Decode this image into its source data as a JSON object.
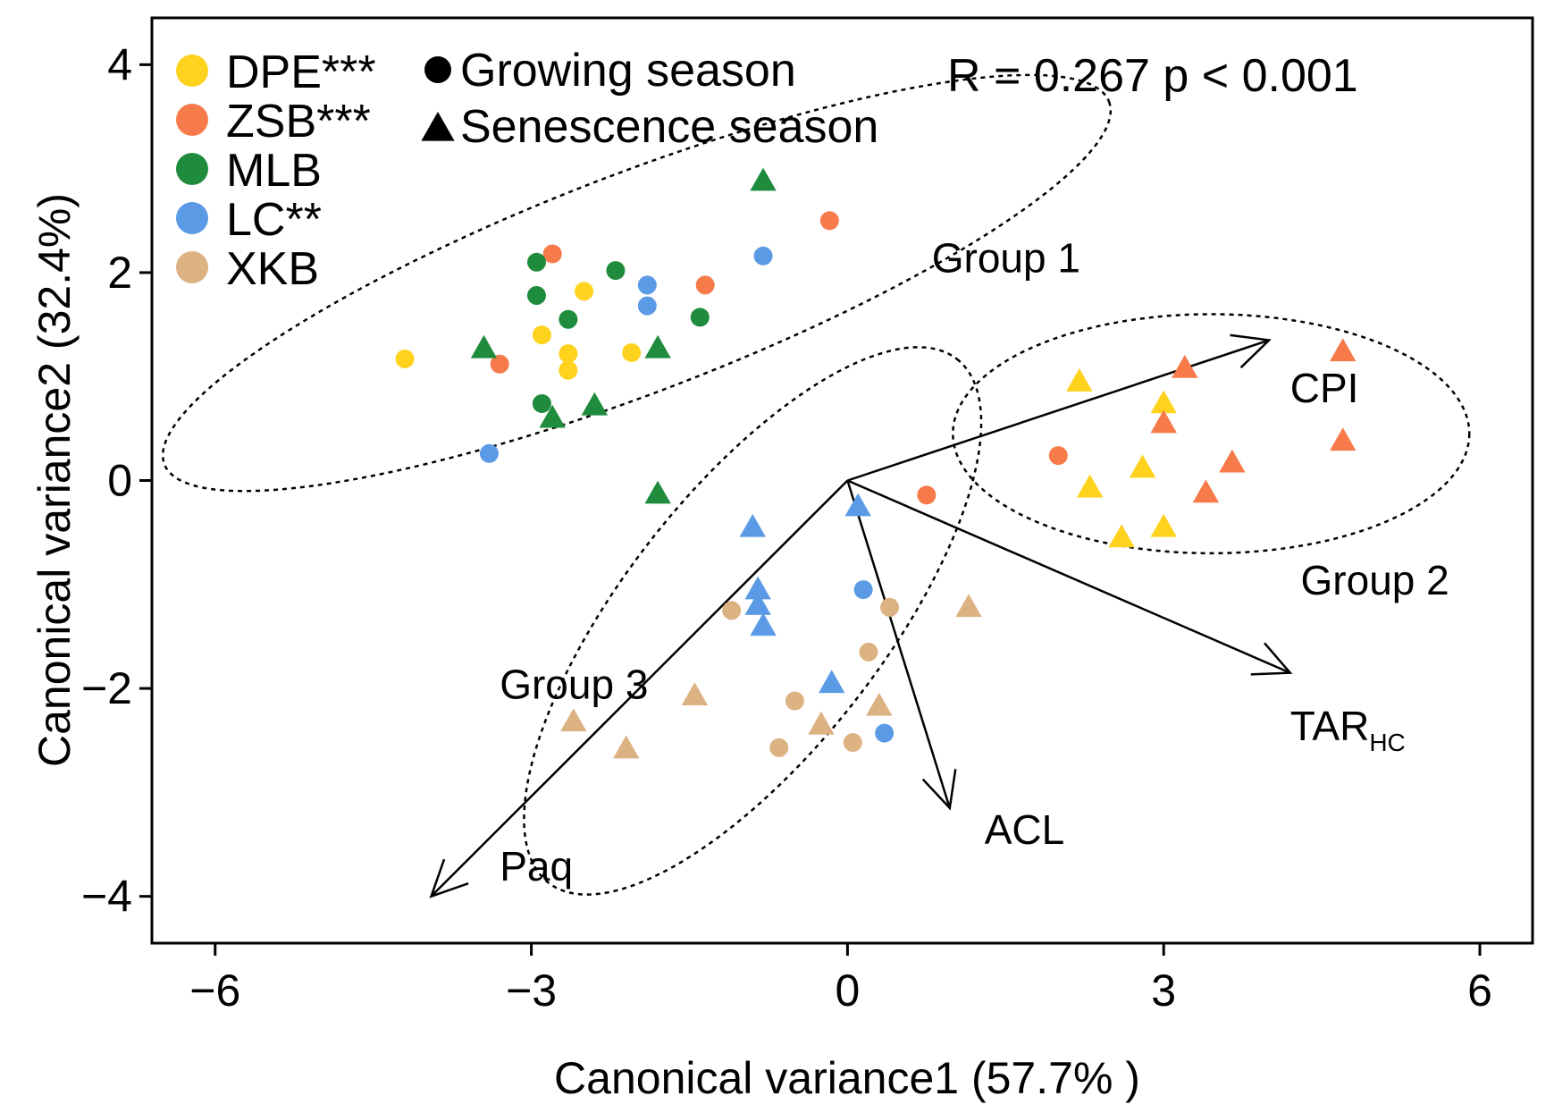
{
  "chart_data": {
    "type": "scatter",
    "xlabel": "Canonical variance1 (57.7% )",
    "ylabel": "Canonical variance2 (32.4%)",
    "xlim": [
      -6.6,
      6.5
    ],
    "ylim": [
      -4.45,
      4.45
    ],
    "xticks": [
      -6,
      -3,
      0,
      3,
      6
    ],
    "yticks": [
      -4,
      -2,
      0,
      2,
      4
    ],
    "xtick_labels": [
      "−6",
      "−3",
      "0",
      "3",
      "6"
    ],
    "ytick_labels": [
      "−4",
      "−2",
      "0",
      "2",
      "4"
    ],
    "grid": false,
    "stat_text": "R = 0.267  p < 0.001",
    "legend_sites": [
      {
        "label": "DPE***",
        "color": "#FFD21E"
      },
      {
        "label": "ZSB***",
        "color": "#F77A4A"
      },
      {
        "label": "MLB",
        "color": "#1E8C3C"
      },
      {
        "label": "LC**",
        "color": "#5B9BE6"
      },
      {
        "label": "XKB",
        "color": "#DDB283"
      }
    ],
    "legend_seasons": [
      {
        "label": "Growing season",
        "shape": "circle"
      },
      {
        "label": "Senescence season",
        "shape": "triangle"
      }
    ],
    "points": [
      {
        "site": "DPE",
        "season": "growing",
        "x": -4.2,
        "y": 1.17
      },
      {
        "site": "DPE",
        "season": "growing",
        "x": -2.5,
        "y": 1.82
      },
      {
        "site": "DPE",
        "season": "growing",
        "x": -2.9,
        "y": 1.4
      },
      {
        "site": "DPE",
        "season": "growing",
        "x": -2.65,
        "y": 1.22
      },
      {
        "site": "DPE",
        "season": "growing",
        "x": -2.65,
        "y": 1.06
      },
      {
        "site": "DPE",
        "season": "growing",
        "x": -2.05,
        "y": 1.23
      },
      {
        "site": "ZSB",
        "season": "growing",
        "x": -3.3,
        "y": 1.12
      },
      {
        "site": "ZSB",
        "season": "growing",
        "x": -2.8,
        "y": 2.18
      },
      {
        "site": "ZSB",
        "season": "growing",
        "x": -1.35,
        "y": 1.88
      },
      {
        "site": "ZSB",
        "season": "growing",
        "x": -0.17,
        "y": 2.5
      },
      {
        "site": "ZSB",
        "season": "growing",
        "x": 2.0,
        "y": 0.24
      },
      {
        "site": "ZSB",
        "season": "growing",
        "x": 0.75,
        "y": -0.14
      },
      {
        "site": "MLB",
        "season": "growing",
        "x": -2.95,
        "y": 2.1
      },
      {
        "site": "MLB",
        "season": "growing",
        "x": -2.95,
        "y": 1.78
      },
      {
        "site": "MLB",
        "season": "growing",
        "x": -2.65,
        "y": 1.55
      },
      {
        "site": "MLB",
        "season": "growing",
        "x": -2.2,
        "y": 2.02
      },
      {
        "site": "MLB",
        "season": "growing",
        "x": -1.4,
        "y": 1.57
      },
      {
        "site": "MLB",
        "season": "growing",
        "x": -2.9,
        "y": 0.74
      },
      {
        "site": "LC",
        "season": "growing",
        "x": -1.9,
        "y": 1.88
      },
      {
        "site": "LC",
        "season": "growing",
        "x": -1.9,
        "y": 1.68
      },
      {
        "site": "LC",
        "season": "growing",
        "x": -0.8,
        "y": 2.16
      },
      {
        "site": "LC",
        "season": "growing",
        "x": -3.4,
        "y": 0.26
      },
      {
        "site": "LC",
        "season": "growing",
        "x": 0.15,
        "y": -1.05
      },
      {
        "site": "LC",
        "season": "growing",
        "x": 0.35,
        "y": -2.43
      },
      {
        "site": "XKB",
        "season": "growing",
        "x": -1.1,
        "y": -1.25
      },
      {
        "site": "XKB",
        "season": "growing",
        "x": 0.4,
        "y": -1.22
      },
      {
        "site": "XKB",
        "season": "growing",
        "x": 0.2,
        "y": -1.65
      },
      {
        "site": "XKB",
        "season": "growing",
        "x": -0.5,
        "y": -2.12
      },
      {
        "site": "XKB",
        "season": "growing",
        "x": -0.65,
        "y": -2.57
      },
      {
        "site": "XKB",
        "season": "growing",
        "x": 0.05,
        "y": -2.52
      },
      {
        "site": "DPE",
        "season": "senescence",
        "x": 2.2,
        "y": 0.95
      },
      {
        "site": "DPE",
        "season": "senescence",
        "x": 3.0,
        "y": 0.74
      },
      {
        "site": "DPE",
        "season": "senescence",
        "x": 2.8,
        "y": 0.12
      },
      {
        "site": "DPE",
        "season": "senescence",
        "x": 2.3,
        "y": -0.07
      },
      {
        "site": "DPE",
        "season": "senescence",
        "x": 3.0,
        "y": -0.45
      },
      {
        "site": "DPE",
        "season": "senescence",
        "x": 2.6,
        "y": -0.55
      },
      {
        "site": "ZSB",
        "season": "senescence",
        "x": 3.2,
        "y": 1.08
      },
      {
        "site": "ZSB",
        "season": "senescence",
        "x": 4.7,
        "y": 1.24
      },
      {
        "site": "ZSB",
        "season": "senescence",
        "x": 3.0,
        "y": 0.55
      },
      {
        "site": "ZSB",
        "season": "senescence",
        "x": 4.7,
        "y": 0.38
      },
      {
        "site": "ZSB",
        "season": "senescence",
        "x": 3.65,
        "y": 0.17
      },
      {
        "site": "ZSB",
        "season": "senescence",
        "x": 3.4,
        "y": -0.12
      },
      {
        "site": "MLB",
        "season": "senescence",
        "x": -0.8,
        "y": 2.88
      },
      {
        "site": "MLB",
        "season": "senescence",
        "x": -3.45,
        "y": 1.27
      },
      {
        "site": "MLB",
        "season": "senescence",
        "x": -1.8,
        "y": 1.27
      },
      {
        "site": "MLB",
        "season": "senescence",
        "x": -2.4,
        "y": 0.72
      },
      {
        "site": "MLB",
        "season": "senescence",
        "x": -2.8,
        "y": 0.6
      },
      {
        "site": "MLB",
        "season": "senescence",
        "x": -1.8,
        "y": -0.13
      },
      {
        "site": "LC",
        "season": "senescence",
        "x": -0.9,
        "y": -0.45
      },
      {
        "site": "LC",
        "season": "senescence",
        "x": 0.1,
        "y": -0.25
      },
      {
        "site": "LC",
        "season": "senescence",
        "x": -0.85,
        "y": -1.05
      },
      {
        "site": "LC",
        "season": "senescence",
        "x": -0.85,
        "y": -1.2
      },
      {
        "site": "LC",
        "season": "senescence",
        "x": -0.8,
        "y": -1.4
      },
      {
        "site": "LC",
        "season": "senescence",
        "x": -0.15,
        "y": -1.95
      },
      {
        "site": "XKB",
        "season": "senescence",
        "x": 1.15,
        "y": -1.22
      },
      {
        "site": "XKB",
        "season": "senescence",
        "x": -1.45,
        "y": -2.07
      },
      {
        "site": "XKB",
        "season": "senescence",
        "x": 0.3,
        "y": -2.17
      },
      {
        "site": "XKB",
        "season": "senescence",
        "x": -0.25,
        "y": -2.35
      },
      {
        "site": "XKB",
        "season": "senescence",
        "x": -2.6,
        "y": -2.32
      },
      {
        "site": "XKB",
        "season": "senescence",
        "x": -2.1,
        "y": -2.58
      }
    ],
    "vectors": [
      {
        "label": "CPI",
        "x": 4.0,
        "y": 1.35,
        "label_x": 4.2,
        "label_y": 0.9
      },
      {
        "label": "TAR",
        "sub": "HC",
        "x": 4.2,
        "y": -1.85,
        "label_x": 4.2,
        "label_y": -2.35
      },
      {
        "label": "ACL",
        "x": 0.97,
        "y": -3.15,
        "label_x": 1.3,
        "label_y": -3.35
      },
      {
        "label": "Paq",
        "x": -3.95,
        "y": -4.0,
        "label_x": -3.3,
        "label_y": -3.7
      }
    ],
    "groups": [
      {
        "label": "Group 1",
        "cx": -2.0,
        "cy": 1.9,
        "rx": 4.8,
        "ry": 1.05,
        "angle_deg": 21,
        "label_x": 0.8,
        "label_y": 2.15
      },
      {
        "label": "Group 2",
        "cx": 3.45,
        "cy": 0.45,
        "rx": 2.45,
        "ry": 1.15,
        "angle_deg": 0,
        "label_x": 4.3,
        "label_y": -0.95
      },
      {
        "label": "Group 3",
        "cx": -0.9,
        "cy": -1.35,
        "rx": 3.15,
        "ry": 1.25,
        "angle_deg": 52,
        "label_x": -3.3,
        "label_y": -1.95
      }
    ]
  }
}
